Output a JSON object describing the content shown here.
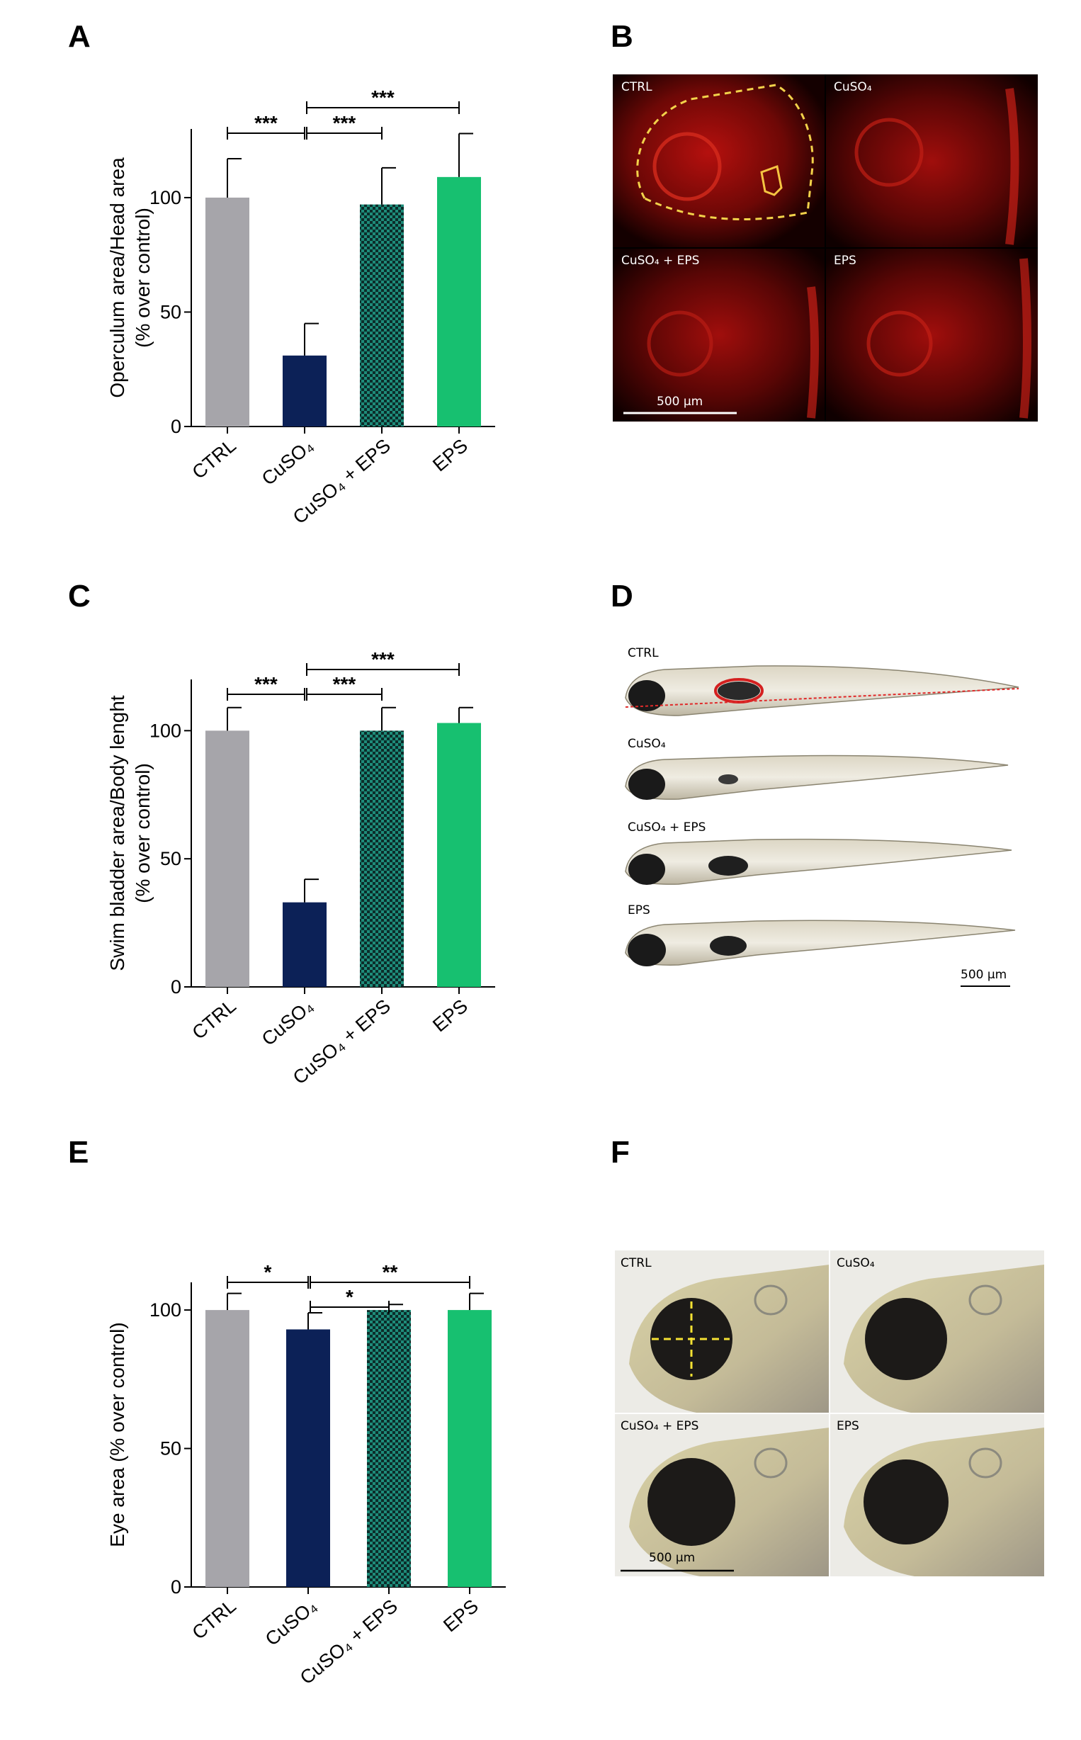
{
  "panels": {
    "A": {
      "letter": "A"
    },
    "B": {
      "letter": "B",
      "captions": [
        "CTRL",
        "CuSO₄",
        "CuSO₄ + EPS",
        "EPS"
      ],
      "scale": "500 µm"
    },
    "C": {
      "letter": "C"
    },
    "D": {
      "letter": "D",
      "captions": [
        "CTRL",
        "CuSO₄",
        "CuSO₄ + EPS",
        "EPS"
      ],
      "scale": "500 µm"
    },
    "E": {
      "letter": "E"
    },
    "F": {
      "letter": "F",
      "captions": [
        "CTRL",
        "CuSO₄",
        "CuSO₄ + EPS",
        "EPS"
      ],
      "scale": "500 µm"
    }
  },
  "colors": {
    "ctrl": "#a6a5aa",
    "cuso4": "#0c2157",
    "combo": "#1e8c7a",
    "eps": "#17c070",
    "fluor": "#c81210"
  },
  "chart_data": [
    {
      "type": "bar",
      "categories": [
        "CTRL",
        "CuSO₄",
        "CuSO₄ + EPS",
        "EPS"
      ],
      "values": [
        100,
        31,
        97,
        109
      ],
      "errors": [
        17,
        14,
        16,
        19
      ],
      "ylabel_lines": [
        "Operculum area/Head area",
        "(% over control)"
      ],
      "ylim": [
        0,
        130
      ],
      "yticks": [
        0,
        50,
        100
      ],
      "grid": false,
      "significance": [
        {
          "from": 0,
          "to": 1,
          "label": "***"
        },
        {
          "from": 1,
          "to": 2,
          "label": "***"
        },
        {
          "from": 1,
          "to": 3,
          "label": "***"
        }
      ]
    },
    {
      "type": "bar",
      "categories": [
        "CTRL",
        "CuSO₄",
        "CuSO₄ + EPS",
        "EPS"
      ],
      "values": [
        100,
        33,
        100,
        103
      ],
      "errors": [
        9,
        9,
        9,
        6
      ],
      "ylabel_lines": [
        "Swim bladder area/Body lenght",
        "(% over control)"
      ],
      "ylim": [
        0,
        120
      ],
      "yticks": [
        0,
        50,
        100
      ],
      "grid": false,
      "significance": [
        {
          "from": 0,
          "to": 1,
          "label": "***"
        },
        {
          "from": 1,
          "to": 2,
          "label": "***"
        },
        {
          "from": 1,
          "to": 3,
          "label": "***"
        }
      ]
    },
    {
      "type": "bar",
      "categories": [
        "CTRL",
        "CuSO₄",
        "CuSO₄ + EPS",
        "EPS"
      ],
      "values": [
        100,
        93,
        100,
        100
      ],
      "errors": [
        6,
        6,
        2,
        6
      ],
      "ylabel_lines": [
        "Eye area (% over control)"
      ],
      "ylim": [
        0,
        110
      ],
      "yticks": [
        0,
        50,
        100
      ],
      "grid": false,
      "significance": [
        {
          "from": 0,
          "to": 1,
          "label": "*"
        },
        {
          "from": 1,
          "to": 2,
          "label": "*"
        },
        {
          "from": 1,
          "to": 3,
          "label": "**"
        }
      ]
    }
  ]
}
